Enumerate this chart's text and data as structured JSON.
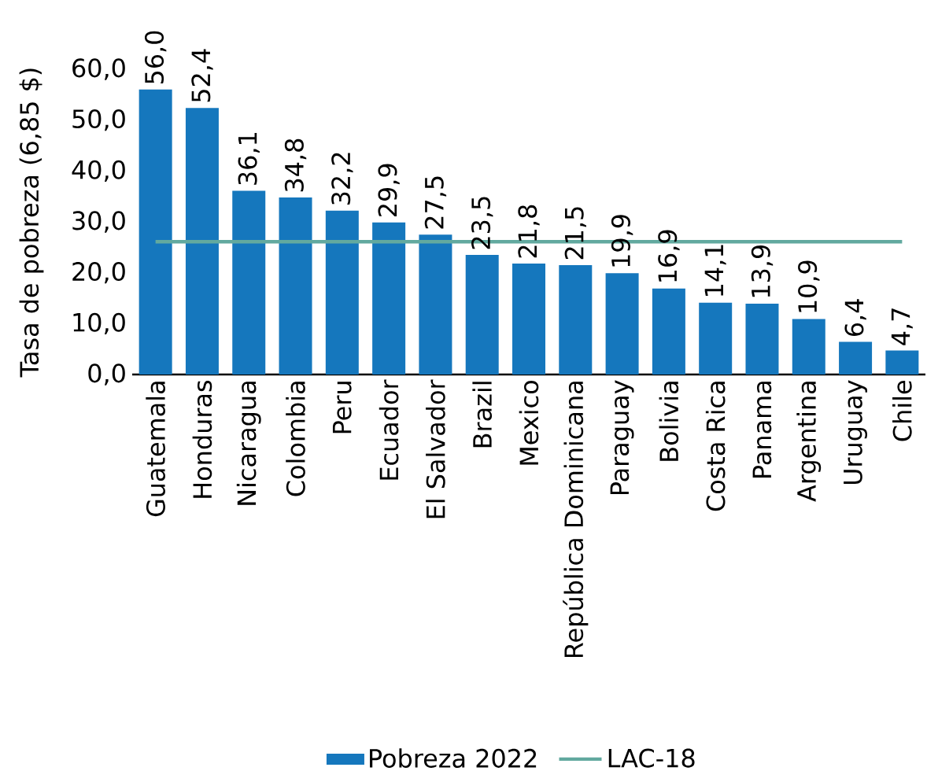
{
  "chart_data": {
    "type": "bar",
    "ylabel": "Tasa de pobreza (6,85 $)",
    "categories": [
      "Guatemala",
      "Honduras",
      "Nicaragua",
      "Colombia",
      "Peru",
      "Ecuador",
      "El Salvador",
      "Brazil",
      "Mexico",
      "República Dominicana",
      "Paraguay",
      "Bolivia",
      "Costa Rica",
      "Panama",
      "Argentina",
      "Uruguay",
      "Chile"
    ],
    "series": [
      {
        "name": "Pobreza 2022",
        "color": "#1577bd",
        "values": [
          56.0,
          52.4,
          36.1,
          34.8,
          32.2,
          29.9,
          27.5,
          23.5,
          21.8,
          21.5,
          19.9,
          16.9,
          14.1,
          13.9,
          10.9,
          6.4,
          4.7
        ],
        "value_labels": [
          "56,0",
          "52,4",
          "36,1",
          "34,8",
          "32,2",
          "29,9",
          "27,5",
          "23,5",
          "21,8",
          "21,5",
          "19,9",
          "16,9",
          "14,1",
          "13,9",
          "10,9",
          "6,4",
          "4,7"
        ]
      },
      {
        "name": "LAC-18",
        "type": "line",
        "color": "#62a99f",
        "values": [
          26.1,
          26.1,
          26.1,
          26.1,
          26.1,
          26.1,
          26.1,
          26.1,
          26.1,
          26.1,
          26.1,
          26.1,
          26.1,
          26.1,
          26.1,
          26.1,
          26.1
        ]
      }
    ],
    "ylim": [
      0,
      60
    ],
    "yticks": [
      {
        "value": 0,
        "label": "0,0"
      },
      {
        "value": 10,
        "label": "10,0"
      },
      {
        "value": 20,
        "label": "20,0"
      },
      {
        "value": 30,
        "label": "30,0"
      },
      {
        "value": 40,
        "label": "40,0"
      },
      {
        "value": 50,
        "label": "50,0"
      },
      {
        "value": 60,
        "label": "60,0"
      }
    ],
    "legend": "bottom"
  }
}
